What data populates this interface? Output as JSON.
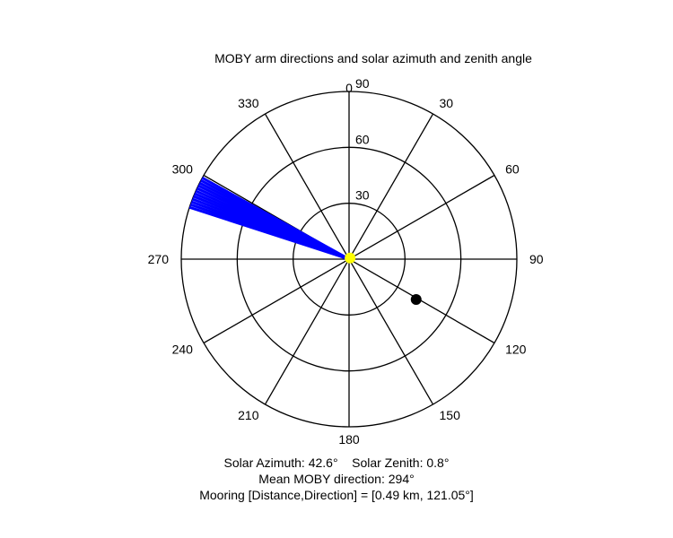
{
  "chart_data": {
    "type": "polar",
    "title": "MOBY arm directions and solar azimuth and zenith angle",
    "angle_ticks": [
      "0",
      "30",
      "60",
      "90",
      "120",
      "150",
      "180",
      "210",
      "240",
      "270",
      "300",
      "330"
    ],
    "radial_ticks": [
      "30",
      "60",
      "90"
    ],
    "radial_max": 90,
    "angle_zero": "top",
    "angle_direction": "clockwise",
    "moby_arm_directions": {
      "directions_deg": [
        288,
        289,
        290,
        291,
        292,
        293,
        294,
        295,
        296,
        297,
        298,
        299
      ],
      "color": "#0000ff"
    },
    "solar": {
      "azimuth_deg": 42.6,
      "zenith_deg": 0.8,
      "color": "#ffff00"
    },
    "mooring": {
      "direction_deg": 121.05,
      "radius": 42,
      "color": "#000000"
    },
    "captions": {
      "solar_azimuth": "Solar Azimuth: 42.6°",
      "solar_zenith": "Solar Zenith: 0.8°",
      "mean_direction": "Mean MOBY direction: 294°",
      "mooring": "Mooring [Distance,Direction] = [0.49 km, 121.05°]"
    }
  }
}
